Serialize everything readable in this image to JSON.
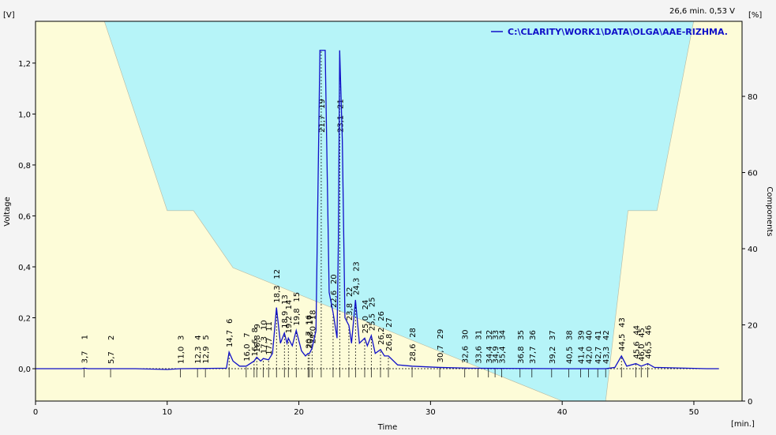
{
  "chart_data": {
    "type": "chromatogram",
    "status": "26,6 min.  0,53 V",
    "y_unit": "[V]",
    "y2_unit": "[%]",
    "x_unit": "[min.]",
    "ylabel": "Voltage",
    "y2label": "Components",
    "xlabel": "Time",
    "xlim": [
      0,
      53.66
    ],
    "ylim": [
      -0.127,
      1.364
    ],
    "y2lim": [
      0,
      99.7
    ],
    "xticks": [
      0,
      10,
      20,
      30,
      40,
      50
    ],
    "yticks": [
      {
        "value": 0,
        "label": "0,0"
      },
      {
        "value": 0.2,
        "label": "0,2"
      },
      {
        "value": 0.4,
        "label": "0,4"
      },
      {
        "value": 0.6,
        "label": "0,6"
      },
      {
        "value": 0.8,
        "label": "0,8"
      },
      {
        "value": 1.0,
        "label": "1,0"
      },
      {
        "value": 1.2,
        "label": "1,2"
      }
    ],
    "y2ticks": [
      0,
      20,
      40,
      60,
      80
    ],
    "trace": {
      "name": "C:\\CLARITY\\WORK1\\DATA\\OLGA\\AAE-RIZHMA.",
      "color": "#1010c8",
      "x": [
        0,
        3.5,
        3.7,
        4,
        7.6,
        10,
        11,
        14.5,
        14.7,
        15.0,
        15.5,
        16.0,
        16.6,
        16.8,
        17.1,
        17.3,
        17.7,
        18.0,
        18.3,
        18.6,
        18.9,
        19.1,
        19.2,
        19.5,
        19.8,
        20.2,
        20.5,
        20.7,
        20.8,
        21.0,
        21.3,
        21.6,
        22.0,
        22.3,
        22.6,
        22.9,
        23.0,
        23.1,
        23.3,
        23.5,
        23.8,
        24.0,
        24.3,
        24.6,
        25.0,
        25.2,
        25.5,
        25.8,
        26.2,
        26.5,
        26.8,
        27.5,
        28.6,
        30.7,
        33,
        40,
        43.3,
        44.0,
        44.5,
        44.9,
        45.6,
        46.0,
        46.5,
        47,
        51,
        51.9
      ],
      "values": [
        0,
        0,
        0.002,
        0,
        0,
        -0.003,
        0,
        0.002,
        0.065,
        0.03,
        0.01,
        0.01,
        0.03,
        0.045,
        0.03,
        0.04,
        0.035,
        0.06,
        0.24,
        0.1,
        0.14,
        0.1,
        0.12,
        0.09,
        0.15,
        0.07,
        0.05,
        0.06,
        0.06,
        0.08,
        0.15,
        1.25,
        1.25,
        0.3,
        0.22,
        0.12,
        0.5,
        1.25,
        0.9,
        0.2,
        0.17,
        0.1,
        0.27,
        0.1,
        0.12,
        0.09,
        0.13,
        0.06,
        0.075,
        0.05,
        0.05,
        0.015,
        0.01,
        0.005,
        0.002,
        0,
        0,
        0.005,
        0.05,
        0.01,
        0.02,
        0.01,
        0.02,
        0.005,
        0,
        0
      ]
    },
    "gradient": {
      "axis": "y2",
      "fill_below": "#fdfcd8",
      "fill_above": "#b6f4f8",
      "x": [
        0,
        5.2,
        10,
        12,
        15,
        40,
        43.3,
        45,
        47.2,
        50,
        53.66
      ],
      "values": [
        100,
        100,
        50,
        50,
        35,
        0,
        0,
        50,
        50,
        100,
        100
      ]
    },
    "peaks": [
      {
        "id": "1",
        "time": {
          "value": 3.7,
          "label": "3,7"
        }
      },
      {
        "id": "2",
        "time": {
          "value": 5.7,
          "label": "5,7"
        }
      },
      {
        "id": "3",
        "time": {
          "value": 11.0,
          "label": "11,0"
        }
      },
      {
        "id": "4",
        "time": {
          "value": 12.3,
          "label": "12,3"
        }
      },
      {
        "id": "5",
        "time": {
          "value": 12.9,
          "label": "12,9"
        }
      },
      {
        "id": "6",
        "time": {
          "value": 14.7,
          "label": "14,7"
        }
      },
      {
        "id": "7",
        "time": {
          "value": 16.0,
          "label": "16,0"
        }
      },
      {
        "id": "8",
        "time": {
          "value": 16.6,
          "label": "16,6"
        }
      },
      {
        "id": "9",
        "time": {
          "value": 16.8,
          "label": "16,8"
        }
      },
      {
        "id": "10",
        "time": {
          "value": 17.3,
          "label": "17,3"
        }
      },
      {
        "id": "11",
        "time": {
          "value": 17.7,
          "label": "17,7"
        }
      },
      {
        "id": "12",
        "time": {
          "value": 18.3,
          "label": "18,3"
        }
      },
      {
        "id": "13",
        "time": {
          "value": 18.9,
          "label": "18,9"
        }
      },
      {
        "id": "14",
        "time": {
          "value": 19.2,
          "label": "19,2"
        }
      },
      {
        "id": "15",
        "time": {
          "value": 19.8,
          "label": "19,8"
        }
      },
      {
        "id": "16",
        "time": {
          "value": 20.7,
          "label": "20,7"
        }
      },
      {
        "id": "17",
        "time": {
          "value": 20.8,
          "label": "20,8"
        }
      },
      {
        "id": "18",
        "time": {
          "value": 21.0,
          "label": "21,0"
        }
      },
      {
        "id": "19",
        "time": {
          "value": 21.7,
          "label": "21,7"
        }
      },
      {
        "id": "20",
        "time": {
          "value": 22.6,
          "label": "22,6"
        }
      },
      {
        "id": "21",
        "time": {
          "value": 23.1,
          "label": "23,1"
        }
      },
      {
        "id": "22",
        "time": {
          "value": 23.8,
          "label": "23,8"
        }
      },
      {
        "id": "23",
        "time": {
          "value": 24.3,
          "label": "24,3"
        }
      },
      {
        "id": "24",
        "time": {
          "value": 25.0,
          "label": "25,0"
        }
      },
      {
        "id": "25",
        "time": {
          "value": 25.5,
          "label": "25,5"
        }
      },
      {
        "id": "26",
        "time": {
          "value": 26.2,
          "label": "26,2"
        }
      },
      {
        "id": "27",
        "time": {
          "value": 26.8,
          "label": "26,8"
        }
      },
      {
        "id": "28",
        "time": {
          "value": 28.6,
          "label": "28,6"
        }
      },
      {
        "id": "29",
        "time": {
          "value": 30.7,
          "label": "30,7"
        }
      },
      {
        "id": "30",
        "time": {
          "value": 32.6,
          "label": "32,6"
        }
      },
      {
        "id": "31",
        "time": {
          "value": 33.6,
          "label": "33,6"
        }
      },
      {
        "id": "32",
        "time": {
          "value": 34.4,
          "label": "34,4"
        }
      },
      {
        "id": "33",
        "time": {
          "value": 34.9,
          "label": "34,9"
        }
      },
      {
        "id": "34",
        "time": {
          "value": 35.4,
          "label": "35,4"
        }
      },
      {
        "id": "35",
        "time": {
          "value": 36.8,
          "label": "36,8"
        }
      },
      {
        "id": "36",
        "time": {
          "value": 37.7,
          "label": "37,7"
        }
      },
      {
        "id": "37",
        "time": {
          "value": 39.2,
          "label": "39,2"
        }
      },
      {
        "id": "38",
        "time": {
          "value": 40.5,
          "label": "40,5"
        }
      },
      {
        "id": "39",
        "time": {
          "value": 41.4,
          "label": "41,4"
        }
      },
      {
        "id": "40",
        "time": {
          "value": 42.0,
          "label": "42,0"
        }
      },
      {
        "id": "41",
        "time": {
          "value": 42.7,
          "label": "42,7"
        }
      },
      {
        "id": "42",
        "time": {
          "value": 43.3,
          "label": "43,3"
        }
      },
      {
        "id": "43",
        "time": {
          "value": 44.5,
          "label": "44,5"
        }
      },
      {
        "id": "44",
        "time": {
          "value": 45.6,
          "label": "45,6"
        }
      },
      {
        "id": "45",
        "time": {
          "value": 46.0,
          "label": "46,0"
        }
      },
      {
        "id": "46",
        "time": {
          "value": 46.5,
          "label": "46,5"
        }
      }
    ]
  }
}
